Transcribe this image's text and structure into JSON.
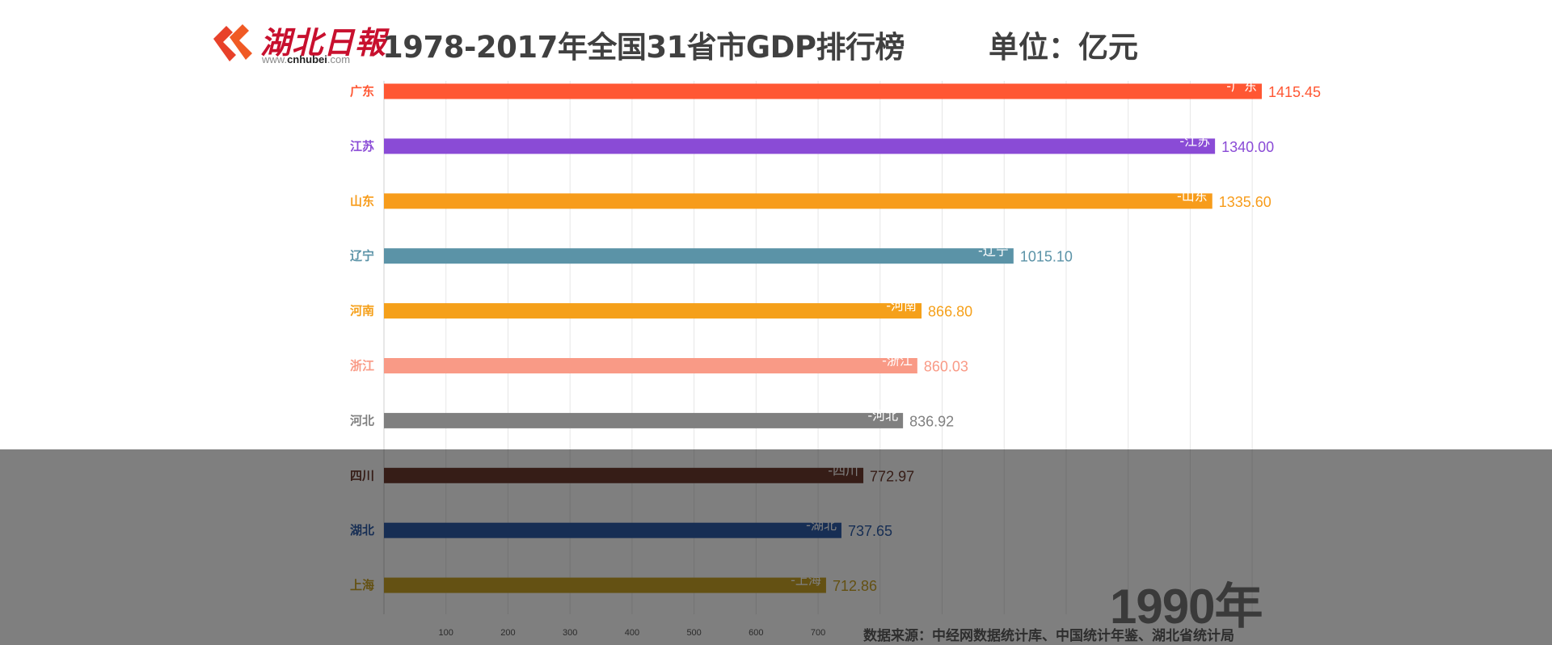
{
  "logo": {
    "name": "湖北日報",
    "url_prefix": "www.",
    "url_domain": "cnhubei",
    "url_suffix": ".com"
  },
  "header": {
    "title": "1978-2017年全国31省市GDP排行榜",
    "unit": "单位：亿元"
  },
  "year": "1990年",
  "source": "数据来源：中经网数据统计库、中国统计年鉴、湖北省统计局",
  "chart_data": {
    "type": "bar",
    "orientation": "horizontal",
    "title": "1978-2017年全国31省市GDP排行榜",
    "unit": "亿元",
    "year": "1990年",
    "categories": [
      "广东",
      "江苏",
      "山东",
      "辽宁",
      "河南",
      "浙江",
      "河北",
      "四川",
      "湖北",
      "上海"
    ],
    "values": [
      1415.45,
      1340.0,
      1335.6,
      1015.1,
      866.8,
      860.03,
      836.92,
      772.97,
      737.65,
      712.86
    ],
    "value_labels": [
      "1415.45",
      "1340.00",
      "1335.60",
      "1015.10",
      "866.80",
      "860.03",
      "836.92",
      "772.97",
      "737.65",
      "712.86"
    ],
    "inbar_labels": [
      "-广东",
      "-江苏",
      "-山东",
      "-辽宁",
      "-河南",
      "-浙江",
      "-河北",
      "-四川",
      "-湖北",
      "-上海"
    ],
    "colors": [
      "#FF5733",
      "#8A4BD6",
      "#F79C1B",
      "#5B93A7",
      "#F5A01A",
      "#F99A86",
      "#808080",
      "#6D3A2E",
      "#2E5DA8",
      "#C9A227"
    ],
    "xticks": [
      100,
      200,
      300,
      400,
      500,
      600,
      700
    ],
    "xlim": [
      0,
      1415.45
    ],
    "grid": true
  }
}
